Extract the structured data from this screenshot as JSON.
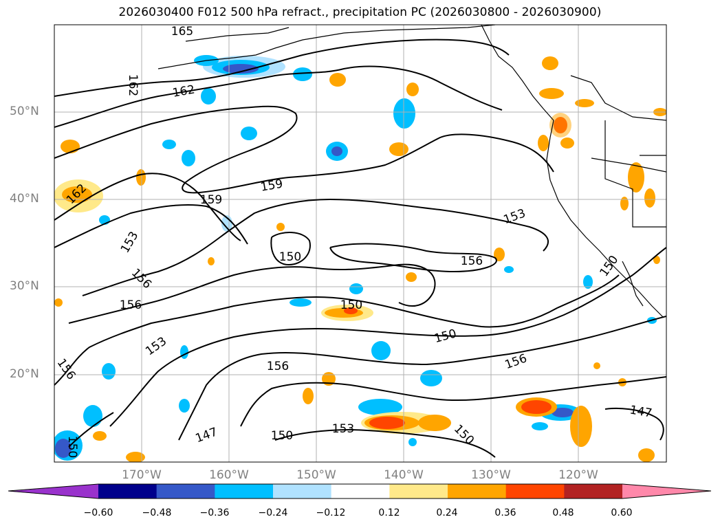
{
  "title": "2026030400 F012 500 hPa refract., precipitation PC (2026030800 - 2026030900)",
  "map": {
    "projection": "plate-carree",
    "lon_range": [
      -180,
      -110
    ],
    "lat_range": [
      10,
      60
    ],
    "grid": true,
    "lat_labels": [
      "50°N",
      "40°N",
      "30°N",
      "20°N"
    ],
    "lon_labels": [
      "170°W",
      "160°W",
      "150°W",
      "140°W",
      "130°W",
      "120°W"
    ],
    "contour_labels": [
      "165",
      "162",
      "162",
      "162",
      "159",
      "159",
      "153",
      "156",
      "156",
      "150",
      "150",
      "156",
      "153",
      "150",
      "153",
      "156",
      "150",
      "153",
      "150",
      "156",
      "147",
      "150",
      "147",
      "156",
      "150"
    ],
    "colors": {
      "contour": "#000000",
      "coast": "#000000",
      "grid": "#b0b0b0",
      "axis_label": "#808080"
    }
  },
  "colorbar": {
    "tick_labels": [
      "−0.60",
      "−0.48",
      "−0.36",
      "−0.24",
      "−0.12",
      "0.12",
      "0.24",
      "0.36",
      "0.48",
      "0.60"
    ],
    "colors": [
      "#9932cc",
      "#00008b",
      "#3558c8",
      "#00bfff",
      "#b0e2ff",
      "#ffffff",
      "#ffe98a",
      "#ffa500",
      "#ff4500",
      "#b22222",
      "#ff88aa"
    ]
  }
}
